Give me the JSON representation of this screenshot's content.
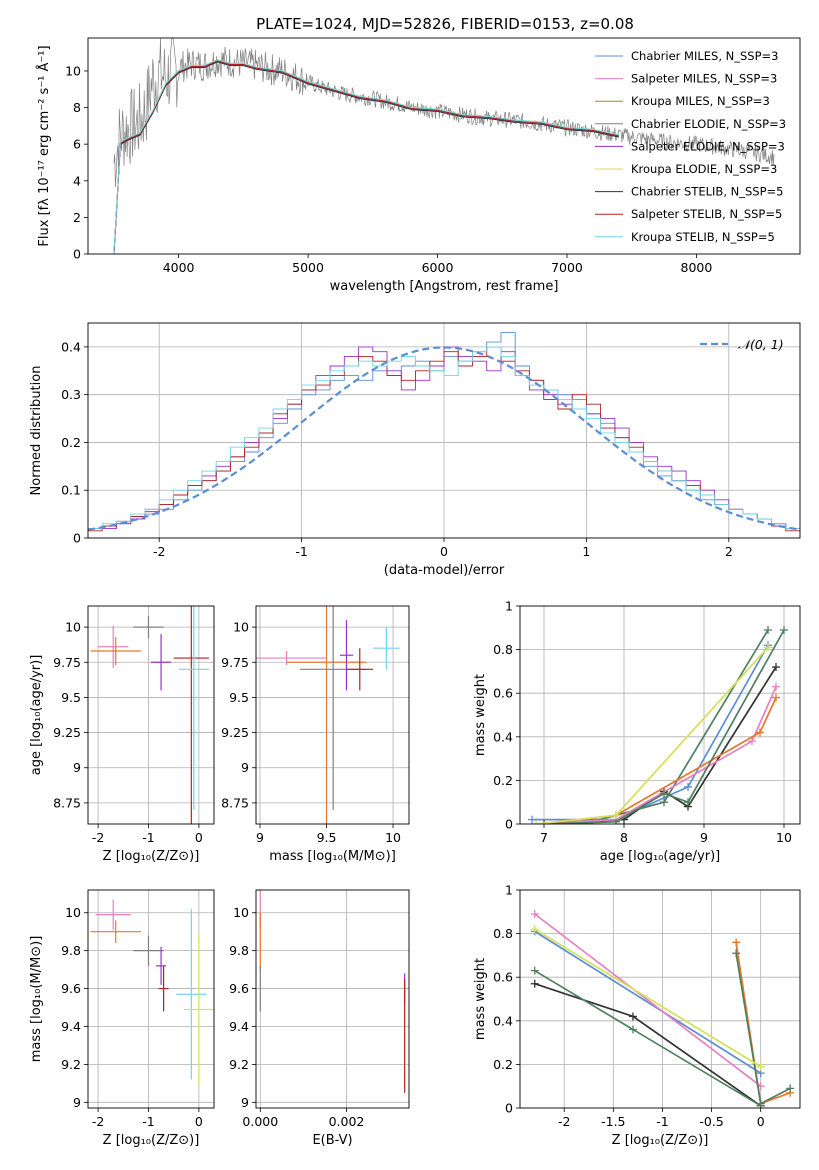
{
  "figure": {
    "title": "PLATE=1024, MJD=52826, FIBERID=0153, z=0.08"
  },
  "colors": {
    "grid": "#b0b0b0",
    "models": [
      "#5b8ed6",
      "#e87fc0",
      "#b8860b",
      "#808080",
      "#9b30c8",
      "#d4e157",
      "#333333",
      "#b22222",
      "#6fd6e8"
    ],
    "gaussian": "#5b8ed6",
    "extra_orange": "#e8772e",
    "extra_green": "#4f7f5f"
  },
  "chart_data": [
    {
      "id": "spectrum",
      "type": "line",
      "xlabel": "wavelength [Angstrom, rest frame]",
      "ylabel": "Flux [fλ 10⁻¹⁷ erg cm⁻² s⁻¹ Å⁻¹]",
      "xlim": [
        3300,
        8800
      ],
      "ylim": [
        0,
        11.8
      ],
      "xticks": [
        4000,
        5000,
        6000,
        7000,
        8000
      ],
      "yticks": [
        0,
        2,
        4,
        6,
        8,
        10
      ],
      "grid": false,
      "legend": "top-right",
      "legend_entries": [
        "Chabrier MILES, N_SSP=3",
        "Salpeter MILES, N_SSP=3",
        "Kroupa MILES, N_SSP=3",
        "Chabrier ELODIE, N_SSP=3",
        "Salpeter ELODIE, N_SSP=3",
        "Kroupa ELODIE, N_SSP=3",
        "Chabrier STELIB, N_SSP=5",
        "Salpeter STELIB, N_SSP=5",
        "Kroupa STELIB, N_SSP=5"
      ],
      "data_series": {
        "name": "data",
        "x": [
          3500,
          3550,
          3600,
          3650,
          3700,
          3750,
          3800,
          3850,
          3900,
          3950,
          4000,
          4100,
          4200,
          4300,
          4400,
          4500,
          4600,
          4700,
          4800,
          4900,
          5000,
          5100,
          5200,
          5300,
          5400,
          5500,
          5600,
          5700,
          5800,
          5900,
          6000,
          6200,
          6400,
          6600,
          6800,
          7000,
          7200,
          7400,
          7600,
          7800,
          8000,
          8200,
          8400,
          8600
        ],
        "y": [
          5.0,
          6.5,
          6.8,
          7.0,
          7.2,
          8.0,
          9.5,
          9.8,
          9.7,
          9.9,
          10.2,
          10.4,
          10.3,
          10.6,
          10.5,
          10.4,
          10.3,
          10.1,
          10.0,
          9.7,
          9.4,
          9.1,
          8.9,
          8.7,
          8.6,
          8.5,
          8.3,
          8.2,
          8.0,
          7.9,
          7.8,
          7.6,
          7.4,
          7.3,
          7.1,
          6.9,
          6.7,
          6.5,
          6.3,
          6.1,
          6.0,
          5.8,
          5.6,
          5.3
        ]
      },
      "model_series": {
        "x": [
          3500,
          3550,
          3600,
          3700,
          3800,
          3900,
          4000,
          4100,
          4200,
          4300,
          4400,
          4500,
          4600,
          4800,
          5000,
          5200,
          5400,
          5600,
          5800,
          6000,
          6200,
          6400,
          6600,
          6800,
          7000,
          7200,
          7400
        ],
        "y": [
          0.0,
          6.0,
          6.3,
          6.5,
          7.8,
          9.2,
          10.0,
          10.2,
          10.3,
          10.5,
          10.4,
          10.3,
          10.2,
          9.9,
          9.4,
          8.9,
          8.6,
          8.3,
          8.0,
          7.8,
          7.6,
          7.4,
          7.3,
          7.1,
          6.9,
          6.7,
          6.5
        ]
      }
    },
    {
      "id": "residuals",
      "type": "histogram",
      "xlabel": "(data-model)/error",
      "ylabel": "Normed distribution",
      "xlim": [
        -2.5,
        2.5
      ],
      "ylim": [
        0,
        0.45
      ],
      "xticks": [
        -2,
        -1,
        0,
        1,
        2
      ],
      "yticks": [
        0.0,
        0.1,
        0.2,
        0.3,
        0.4
      ],
      "grid": true,
      "legend": "top-right",
      "legend_entries": [
        "𝒩(0, 1)"
      ],
      "bin_edges": [
        -2.5,
        -2.4,
        -2.3,
        -2.2,
        -2.1,
        -2.0,
        -1.9,
        -1.8,
        -1.7,
        -1.6,
        -1.5,
        -1.4,
        -1.3,
        -1.2,
        -1.1,
        -1.0,
        -0.9,
        -0.8,
        -0.7,
        -0.6,
        -0.5,
        -0.4,
        -0.3,
        -0.2,
        -0.1,
        0.0,
        0.1,
        0.2,
        0.3,
        0.4,
        0.5,
        0.6,
        0.7,
        0.8,
        0.9,
        1.0,
        1.1,
        1.2,
        1.3,
        1.4,
        1.5,
        1.6,
        1.7,
        1.8,
        1.9,
        2.0,
        2.1,
        2.2,
        2.3,
        2.4,
        2.5
      ],
      "series": [
        {
          "values": [
            0.02,
            0.025,
            0.03,
            0.04,
            0.05,
            0.06,
            0.08,
            0.1,
            0.12,
            0.14,
            0.16,
            0.18,
            0.21,
            0.24,
            0.27,
            0.3,
            0.31,
            0.33,
            0.34,
            0.33,
            0.35,
            0.34,
            0.36,
            0.37,
            0.35,
            0.38,
            0.37,
            0.39,
            0.41,
            0.43,
            0.36,
            0.33,
            0.31,
            0.3,
            0.29,
            0.26,
            0.24,
            0.21,
            0.18,
            0.15,
            0.13,
            0.12,
            0.1,
            0.08,
            0.07,
            0.06,
            0.05,
            0.04,
            0.03,
            0.02
          ]
        },
        {
          "values": [
            0.02,
            0.02,
            0.03,
            0.04,
            0.06,
            0.07,
            0.09,
            0.11,
            0.13,
            0.15,
            0.17,
            0.2,
            0.22,
            0.25,
            0.28,
            0.31,
            0.34,
            0.36,
            0.38,
            0.4,
            0.39,
            0.35,
            0.31,
            0.33,
            0.36,
            0.4,
            0.38,
            0.37,
            0.35,
            0.39,
            0.34,
            0.31,
            0.3,
            0.28,
            0.27,
            0.26,
            0.25,
            0.23,
            0.2,
            0.17,
            0.15,
            0.14,
            0.12,
            0.1,
            0.08,
            0.06,
            0.05,
            0.04,
            0.03,
            0.02
          ]
        },
        {
          "values": [
            0.015,
            0.025,
            0.035,
            0.045,
            0.055,
            0.07,
            0.09,
            0.11,
            0.12,
            0.14,
            0.17,
            0.19,
            0.22,
            0.26,
            0.28,
            0.31,
            0.32,
            0.34,
            0.36,
            0.38,
            0.37,
            0.34,
            0.33,
            0.35,
            0.37,
            0.39,
            0.36,
            0.38,
            0.4,
            0.37,
            0.35,
            0.33,
            0.29,
            0.27,
            0.3,
            0.28,
            0.23,
            0.21,
            0.19,
            0.16,
            0.14,
            0.12,
            0.11,
            0.09,
            0.07,
            0.06,
            0.05,
            0.04,
            0.025,
            0.015
          ]
        },
        {
          "values": [
            0.02,
            0.03,
            0.035,
            0.05,
            0.06,
            0.08,
            0.1,
            0.12,
            0.14,
            0.16,
            0.19,
            0.21,
            0.23,
            0.27,
            0.29,
            0.32,
            0.33,
            0.35,
            0.36,
            0.37,
            0.36,
            0.37,
            0.38,
            0.36,
            0.35,
            0.34,
            0.37,
            0.39,
            0.4,
            0.38,
            0.34,
            0.32,
            0.31,
            0.29,
            0.27,
            0.25,
            0.22,
            0.2,
            0.18,
            0.16,
            0.14,
            0.12,
            0.1,
            0.09,
            0.07,
            0.06,
            0.05,
            0.04,
            0.03,
            0.02
          ]
        }
      ],
      "gaussian": {
        "mean": 0,
        "sigma": 1
      }
    },
    {
      "id": "age_vs_Z",
      "type": "errorbar",
      "xlabel": "Z [log₁₀(Z/Z⊙)]",
      "ylabel": "age  [log₁₀(age/yr)]",
      "xlim": [
        -2.2,
        0.3
      ],
      "ylim": [
        8.6,
        10.15
      ],
      "xticks": [
        -2,
        -1,
        0
      ],
      "yticks": [
        8.75,
        9.0,
        9.25,
        9.5,
        9.75,
        10.0
      ],
      "points": [
        {
          "x": -1.7,
          "y": 9.86,
          "xerr": 0.3,
          "yerr": 0.15
        },
        {
          "x": -1.65,
          "y": 9.83,
          "xerr": 0.5,
          "yerr": 0.1
        },
        {
          "x": -1.0,
          "y": 10.0,
          "xerr": 0.3,
          "yerr": 0.08
        },
        {
          "x": -0.75,
          "y": 9.75,
          "xerr": 0.2,
          "yerr": 0.2
        },
        {
          "x": -0.15,
          "y": 9.78,
          "xerr": 0.35,
          "yerr": 1.2
        },
        {
          "x": -0.1,
          "y": 9.7,
          "xerr": 0.3,
          "yerr": 1.0
        }
      ]
    },
    {
      "id": "age_vs_mass",
      "type": "errorbar",
      "xlabel": "mass [log₁₀(M/M⊙)]",
      "ylabel": "",
      "xlim": [
        8.97,
        10.12
      ],
      "ylim": [
        8.6,
        10.15
      ],
      "xticks": [
        9.0,
        9.5,
        10.0
      ],
      "yticks": [
        8.75,
        9.0,
        9.25,
        9.5,
        9.75,
        10.0
      ],
      "points": [
        {
          "x": 9.2,
          "y": 9.78,
          "xerr": 0.3,
          "yerr": 0.05
        },
        {
          "x": 9.5,
          "y": 9.75,
          "xerr": 0.3,
          "yerr": 1.2
        },
        {
          "x": 9.55,
          "y": 9.7,
          "xerr": 0.25,
          "yerr": 1.0
        },
        {
          "x": 9.65,
          "y": 9.8,
          "xerr": 0.05,
          "yerr": 0.25
        },
        {
          "x": 9.75,
          "y": 9.7,
          "xerr": 0.1,
          "yerr": 0.15
        },
        {
          "x": 9.95,
          "y": 9.85,
          "xerr": 0.1,
          "yerr": 0.15
        }
      ]
    },
    {
      "id": "mass_weight_vs_age",
      "type": "line",
      "xlabel": "age  [log₁₀(age/yr)]",
      "ylabel": "mass weight",
      "xlim": [
        6.7,
        10.2
      ],
      "ylim": [
        0,
        1.0
      ],
      "xticks": [
        7,
        8,
        9,
        10
      ],
      "yticks": [
        0.0,
        0.2,
        0.4,
        0.6,
        0.8,
        1.0
      ],
      "grid": true,
      "series": [
        {
          "x": [
            6.85,
            7.9,
            8.8,
            9.8
          ],
          "y": [
            0.02,
            0.02,
            0.17,
            0.82
          ]
        },
        {
          "x": [
            7.0,
            8.0,
            8.5,
            8.8,
            9.9
          ],
          "y": [
            0.0,
            0.02,
            0.15,
            0.08,
            0.72
          ]
        },
        {
          "x": [
            7.0,
            7.6,
            8.5,
            9.8
          ],
          "y": [
            0.0,
            0.01,
            0.1,
            0.89
          ]
        },
        {
          "x": [
            6.9,
            7.9,
            9.6,
            9.9
          ],
          "y": [
            0.0,
            0.02,
            0.38,
            0.63
          ]
        },
        {
          "x": [
            7.0,
            7.9,
            9.7,
            9.9
          ],
          "y": [
            0.0,
            0.04,
            0.42,
            0.58
          ]
        },
        {
          "x": [
            7.0,
            7.9,
            8.5,
            8.8,
            10.0
          ],
          "y": [
            0.0,
            0.01,
            0.14,
            0.1,
            0.89
          ]
        },
        {
          "x": [
            6.9,
            7.9,
            9.8
          ],
          "y": [
            0.0,
            0.04,
            0.81
          ]
        }
      ]
    },
    {
      "id": "mass_vs_Z",
      "type": "errorbar",
      "xlabel": "Z [log₁₀(Z/Z⊙)]",
      "ylabel": "mass [log₁₀(M/M⊙)]",
      "xlim": [
        -2.2,
        0.3
      ],
      "ylim": [
        8.97,
        10.12
      ],
      "xticks": [
        -2,
        -1,
        0
      ],
      "yticks": [
        9.0,
        9.2,
        9.4,
        9.6,
        9.8,
        10.0
      ],
      "points": [
        {
          "x": -1.7,
          "y": 9.99,
          "xerr": 0.35,
          "yerr": 0.08
        },
        {
          "x": -1.65,
          "y": 9.9,
          "xerr": 0.5,
          "yerr": 0.06
        },
        {
          "x": -1.0,
          "y": 9.8,
          "xerr": 0.3,
          "yerr": 0.08
        },
        {
          "x": -0.75,
          "y": 9.72,
          "xerr": 0.1,
          "yerr": 0.1
        },
        {
          "x": -0.7,
          "y": 9.6,
          "xerr": 0.1,
          "yerr": 0.12
        },
        {
          "x": -0.15,
          "y": 9.57,
          "xerr": 0.3,
          "yerr": 0.45
        },
        {
          "x": 0.0,
          "y": 9.49,
          "xerr": 0.3,
          "yerr": 0.4
        }
      ]
    },
    {
      "id": "mass_vs_ebv",
      "type": "errorbar",
      "xlabel": "E(B-V)",
      "ylabel": "",
      "xlim": [
        -0.0001,
        0.00345
      ],
      "ylim": [
        8.97,
        10.12
      ],
      "xticks": [
        0.0,
        0.002
      ],
      "xtick_labels": [
        "0.000",
        "0.002"
      ],
      "yticks": [
        9.0,
        9.2,
        9.4,
        9.6,
        9.8,
        10.0
      ],
      "points": [
        {
          "x": 0.0,
          "y": 10.02,
          "xerr": 0,
          "yerr": 0.1
        },
        {
          "x": 0.0,
          "y": 9.85,
          "xerr": 0,
          "yerr": 0.15
        },
        {
          "x": 0.0,
          "y": 9.6,
          "xerr": 0,
          "yerr": 0.12
        },
        {
          "x": 0.00335,
          "y": 9.6,
          "xerr": 0,
          "yerr": 0.08
        },
        {
          "x": 0.00335,
          "y": 9.35,
          "xerr": 0,
          "yerr": 0.3
        }
      ]
    },
    {
      "id": "mass_weight_vs_Z",
      "type": "line",
      "xlabel": "Z [log₁₀(Z/Z⊙)]",
      "ylabel": "mass weight",
      "xlim": [
        -2.45,
        0.4
      ],
      "ylim": [
        0,
        1.0
      ],
      "xticks": [
        -2.0,
        -1.5,
        -1.0,
        -0.5,
        0.0
      ],
      "yticks": [
        0.0,
        0.2,
        0.4,
        0.6,
        0.8,
        1.0
      ],
      "grid": true,
      "series": [
        {
          "x": [
            -2.3,
            0.0
          ],
          "y": [
            0.81,
            0.16
          ]
        },
        {
          "x": [
            -2.3,
            -1.3,
            0.0
          ],
          "y": [
            0.57,
            0.42,
            0.01
          ]
        },
        {
          "x": [
            -2.3,
            -1.3,
            0.0
          ],
          "y": [
            0.63,
            0.36,
            0.01
          ]
        },
        {
          "x": [
            -2.3,
            0.0
          ],
          "y": [
            0.89,
            0.1
          ]
        },
        {
          "x": [
            -0.25,
            0.0,
            0.3
          ],
          "y": [
            0.76,
            0.02,
            0.07
          ]
        },
        {
          "x": [
            -0.25,
            0.0,
            0.3
          ],
          "y": [
            0.71,
            0.02,
            0.09
          ]
        },
        {
          "x": [
            -2.3,
            0.0
          ],
          "y": [
            0.82,
            0.19
          ]
        }
      ]
    }
  ]
}
